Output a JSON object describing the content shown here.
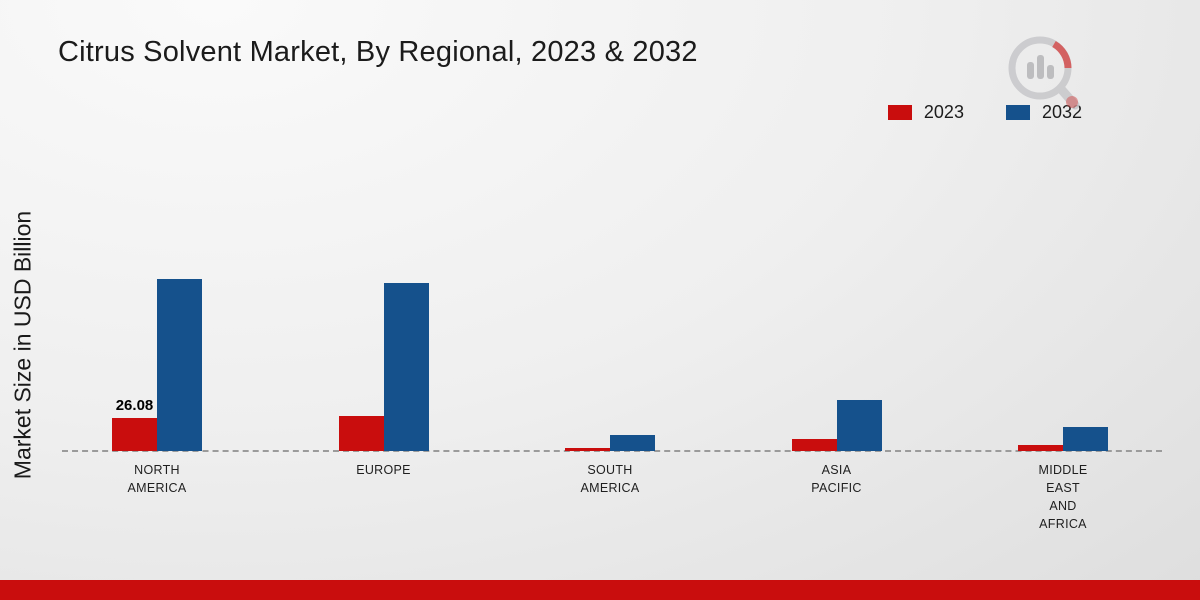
{
  "title": "Citrus Solvent Market, By Regional, 2023 & 2032",
  "ylabel": "Market Size in USD Billion",
  "colors": {
    "series_2023": "#c90d0d",
    "series_2032": "#15518c",
    "footer_bar": "#c90d0d",
    "baseline": "#9b9b9b"
  },
  "chart_data": {
    "type": "bar",
    "title": "Citrus Solvent Market, By Regional, 2023 & 2032",
    "xlabel": "",
    "ylabel": "Market Size in USD Billion",
    "ylim": [
      0,
      220
    ],
    "grid": false,
    "legend_position": "top-right",
    "baseline_style": "dashed",
    "categories": [
      "NORTH AMERICA",
      "EUROPE",
      "SOUTH AMERICA",
      "ASIA PACIFIC",
      "MIDDLE EAST AND AFRICA"
    ],
    "category_label_lines": [
      [
        "NORTH",
        "AMERICA"
      ],
      [
        "EUROPE"
      ],
      [
        "SOUTH",
        "AMERICA"
      ],
      [
        "ASIA",
        "PACIFIC"
      ],
      [
        "MIDDLE",
        "EAST",
        "AND",
        "AFRICA"
      ]
    ],
    "series": [
      {
        "name": "2023",
        "color": "#c90d0d",
        "values": [
          26.08,
          27.5,
          2.5,
          9.5,
          4.7
        ]
      },
      {
        "name": "2032",
        "color": "#15518c",
        "values": [
          135,
          132,
          12.5,
          40,
          19
        ]
      }
    ],
    "annotations": [
      {
        "series": "2023",
        "category": "NORTH AMERICA",
        "text": "26.08"
      }
    ]
  }
}
